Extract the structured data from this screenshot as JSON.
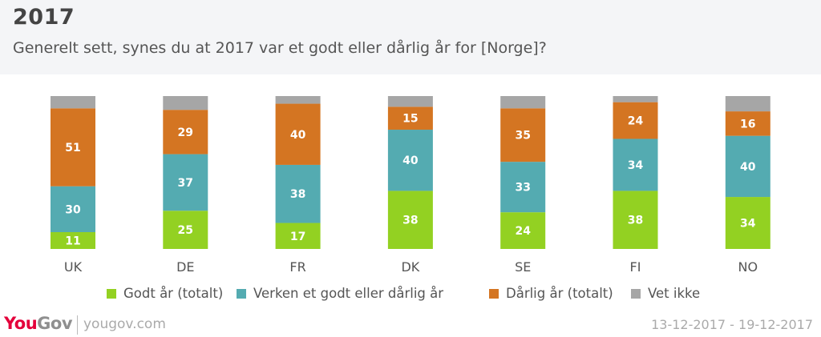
{
  "header": {
    "title": "2017",
    "subtitle": "Generelt sett, synes du at 2017 var et godt eller dårlig år for [Norge]?"
  },
  "footer": {
    "logo_you": "You",
    "logo_gov": "Gov",
    "url": "yougov.com",
    "date_range": "13-12-2017 - 19-12-2017"
  },
  "chart_data": {
    "type": "bar",
    "stacked": true,
    "title": "2017",
    "subtitle": "Generelt sett, synes du at 2017 var et godt eller dårlig år for [Norge]?",
    "xlabel": "",
    "ylabel": "",
    "ylim": [
      0,
      100
    ],
    "grid": false,
    "legend_position": "bottom",
    "categories": [
      "UK",
      "DE",
      "FR",
      "DK",
      "SE",
      "FI",
      "NO"
    ],
    "series": [
      {
        "name": "Godt år (totalt)",
        "color": "#93d122",
        "values": [
          11,
          25,
          17,
          38,
          24,
          38,
          34
        ],
        "labeled": true
      },
      {
        "name": "Verken et godt eller dårlig år",
        "color": "#54abb1",
        "values": [
          30,
          37,
          38,
          40,
          33,
          34,
          40
        ],
        "labeled": true
      },
      {
        "name": "Dårlig år (totalt)",
        "color": "#d47522",
        "values": [
          51,
          29,
          40,
          15,
          35,
          24,
          16
        ],
        "labeled": true
      },
      {
        "name": "Vet ikke",
        "color": "#a6a6a6",
        "values": [
          8,
          9,
          5,
          7,
          8,
          4,
          10
        ],
        "labeled": false
      }
    ]
  }
}
